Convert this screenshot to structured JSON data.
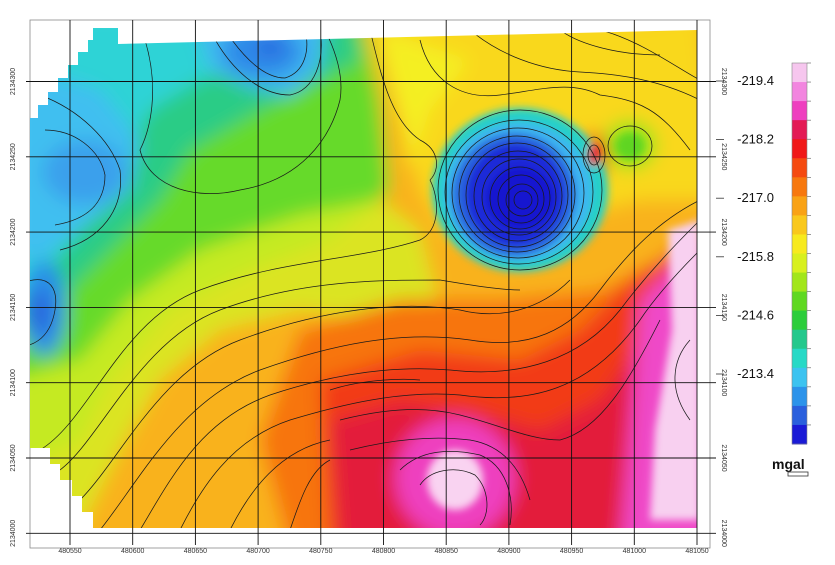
{
  "chart_data": {
    "type": "heatmap",
    "title": "",
    "units": "mgal",
    "x_ticks": [
      "480550",
      "480600",
      "480650",
      "480700",
      "480750",
      "480800",
      "480850",
      "480900",
      "480950",
      "481000",
      "481050"
    ],
    "y_ticks": [
      "2134300",
      "2134250",
      "2134200",
      "2134150",
      "2134100",
      "2134050",
      "2134000"
    ],
    "colorbar_labels": [
      "-219.4",
      "-218.2",
      "-217.0",
      "-215.8",
      "-214.6",
      "-213.4"
    ],
    "colorbar_colors": [
      "#f6c6ee",
      "#f285df",
      "#ee3fbf",
      "#e31b55",
      "#f01818",
      "#f54a10",
      "#f7780e",
      "#f9a215",
      "#f9c81c",
      "#f7ea1e",
      "#d8f01e",
      "#a2e61a",
      "#5fd821",
      "#2ccd3b",
      "#24c88c",
      "#27d9c6",
      "#3cc3f0",
      "#2c93ea",
      "#2a5fdd",
      "#1a1ad6"
    ],
    "features": [
      {
        "name": "low anomaly",
        "x": 480915,
        "y": 2134210,
        "value": -212.8
      },
      {
        "name": "high anomaly",
        "x": 480860,
        "y": 2134040,
        "value": -219.6
      },
      {
        "name": "high anomaly",
        "x": 481035,
        "y": 2134120,
        "value": -219.5
      }
    ]
  }
}
